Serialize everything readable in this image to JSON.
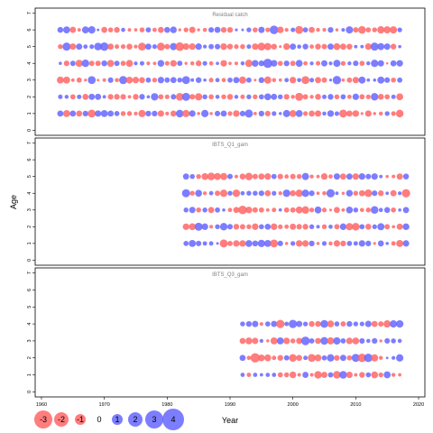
{
  "chart_data": {
    "type": "scatter",
    "subtype": "bubble residual plot, three stacked panels sharing a year axis",
    "xlabel": "Year",
    "ylabel": "Age",
    "xlim": [
      1959,
      2021
    ],
    "x_ticks": [
      "1960",
      "1970",
      "1980",
      "1990",
      "2000",
      "2010",
      "2020"
    ],
    "y_ticks": [
      "0",
      "1",
      "2",
      "3",
      "4",
      "5",
      "6",
      "7"
    ],
    "ylim": [
      -0.3,
      7.3
    ],
    "colors": {
      "negative": "#ff6666",
      "positive": "#6666ff",
      "edge": "#000000"
    },
    "size_scale": "circle area proportional to absolute residual",
    "legend": {
      "placement": "bottom-left",
      "labels": [
        "-3",
        "-2",
        "-1",
        "0",
        "1",
        "2",
        "3",
        "4"
      ],
      "values": [
        -3,
        -2,
        -1,
        0,
        1,
        2,
        3,
        4
      ]
    },
    "panels": [
      {
        "title": "Residual catch",
        "years": [
          1963,
          2017
        ],
        "ages": [
          1,
          6
        ]
      },
      {
        "title": "IBTS_Q1_gam",
        "years": [
          1983,
          2018
        ],
        "ages": [
          1,
          5
        ]
      },
      {
        "title": "IBTS_Q3_gam",
        "years": [
          1992,
          2017
        ],
        "ages": [
          1,
          4
        ]
      }
    ]
  }
}
